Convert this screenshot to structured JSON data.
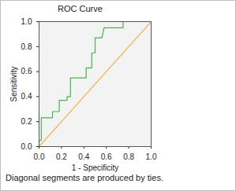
{
  "chart_data": {
    "type": "line",
    "title": "ROC Curve",
    "xlabel": "1 - Specificity",
    "ylabel": "Sensitivity",
    "caption": "Diagonal segments are produced by ties.",
    "xlim": [
      0,
      1
    ],
    "ylim": [
      0,
      1
    ],
    "xticks": [
      {
        "value": 0,
        "label": "0.0"
      },
      {
        "value": 0.2,
        "label": "0.2"
      },
      {
        "value": 0.4,
        "label": "0.4"
      },
      {
        "value": 0.6,
        "label": "0.6"
      },
      {
        "value": 0.8,
        "label": "0.8"
      },
      {
        "value": 1,
        "label": "1.0"
      }
    ],
    "yticks": [
      {
        "value": 0,
        "label": "0.0"
      },
      {
        "value": 0.2,
        "label": "0.2"
      },
      {
        "value": 0.4,
        "label": "0.4"
      },
      {
        "value": 0.6,
        "label": "0.6"
      },
      {
        "value": 0.8,
        "label": "0.8"
      },
      {
        "value": 1,
        "label": "1.0"
      }
    ],
    "series": [
      {
        "color": "#4caf50",
        "x": [
          0,
          0,
          0.02,
          0.02,
          0.12,
          0.12,
          0.18,
          0.18,
          0.25,
          0.25,
          0.28,
          0.28,
          0.42,
          0.42,
          0.47,
          0.47,
          0.5,
          0.5,
          0.56,
          0.58,
          0.75,
          0.75,
          1
        ],
        "values": [
          0,
          0.05,
          0.05,
          0.23,
          0.23,
          0.28,
          0.28,
          0.37,
          0.37,
          0.4,
          0.4,
          0.55,
          0.55,
          0.63,
          0.63,
          0.75,
          0.75,
          0.87,
          0.87,
          0.95,
          0.95,
          1,
          1
        ]
      },
      {
        "color": "#f5b041",
        "x": [
          0,
          1
        ],
        "values": [
          0,
          1
        ]
      }
    ]
  }
}
